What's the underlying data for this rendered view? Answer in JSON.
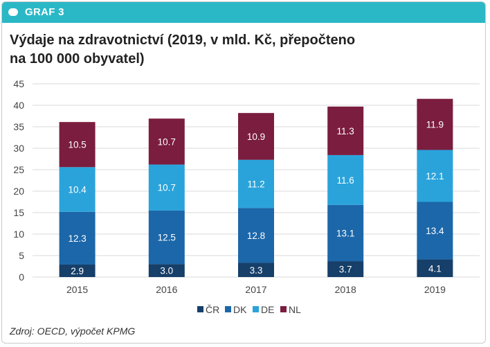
{
  "header": {
    "label": "GRAF 3"
  },
  "title": {
    "line1": "Výdaje na zdravotnictví (2019, v mld. Kč, přepočteno",
    "line2": "na 100 000 obyvatel)"
  },
  "source": "Zdroj: OECD, výpočet KPMG",
  "colors": {
    "accent": "#2ab8c6",
    "CR": "#163f69",
    "DK": "#1c67a9",
    "DE": "#2aa3db",
    "NL": "#7b1d3f"
  },
  "chart_data": {
    "type": "bar",
    "stacked": true,
    "categories": [
      "2015",
      "2016",
      "2017",
      "2018",
      "2019"
    ],
    "series": [
      {
        "name": "ČR",
        "color": "#163f69",
        "values": [
          2.9,
          3.0,
          3.3,
          3.7,
          4.1
        ],
        "labels": [
          "2.9",
          "3.0",
          "3.3",
          "3.7",
          "4.1"
        ]
      },
      {
        "name": "DK",
        "color": "#1c67a9",
        "values": [
          12.3,
          12.5,
          12.8,
          13.1,
          13.4
        ],
        "labels": [
          "12.3",
          "12.5",
          "12.8",
          "13.1",
          "13.4"
        ]
      },
      {
        "name": "DE",
        "color": "#2aa3db",
        "values": [
          10.4,
          10.7,
          11.2,
          11.6,
          12.1
        ],
        "labels": [
          "10.4",
          "10.7",
          "11.2",
          "11.6",
          "12.1"
        ]
      },
      {
        "name": "NL",
        "color": "#7b1d3f",
        "values": [
          10.5,
          10.7,
          10.9,
          11.3,
          11.9
        ],
        "labels": [
          "10.5",
          "10.7",
          "10.9",
          "11.3",
          "11.9"
        ]
      }
    ],
    "ylim": [
      0,
      45
    ],
    "yticks": [
      0,
      5,
      10,
      15,
      20,
      25,
      30,
      35,
      40,
      45
    ],
    "grid": true,
    "legend_position": "bottom"
  }
}
